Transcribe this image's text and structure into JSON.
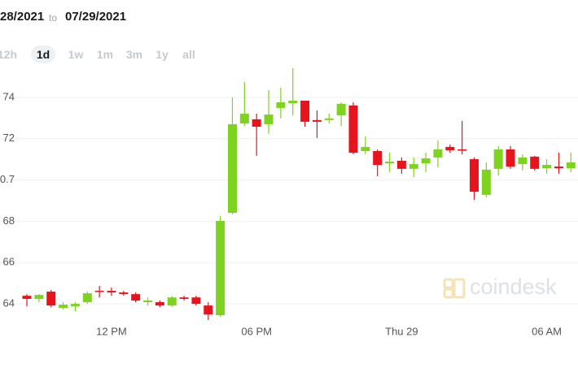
{
  "header": {
    "from": "28/2021",
    "to": "to",
    "until": "07/29/2021"
  },
  "ranges": [
    "12h",
    "1d",
    "1w",
    "1m",
    "3m",
    "1y",
    "all"
  ],
  "selected_range": "1d",
  "watermark": "coindesk",
  "chart_data": {
    "type": "candlestick",
    "up_color": "#7ed321",
    "down_color": "#e8141d",
    "grid": true,
    "categories": [
      null,
      null,
      null,
      null,
      null,
      null,
      null,
      "12 PM",
      null,
      null,
      null,
      null,
      null,
      null,
      null,
      null,
      null,
      null,
      null,
      "06 PM",
      null,
      null,
      null,
      null,
      null,
      null,
      null,
      null,
      null,
      null,
      null,
      "Thu 29",
      null,
      null,
      null,
      null,
      null,
      null,
      null,
      null,
      null,
      null,
      null,
      "06 AM",
      null,
      null
    ],
    "open": [
      0.6439,
      0.6424,
      0.6459,
      0.638,
      0.6388,
      0.6408,
      0.6463,
      0.6463,
      0.6455,
      0.6447,
      0.6408,
      0.6408,
      0.6392,
      0.6431,
      0.6431,
      0.6392,
      0.6345,
      0.6841,
      0.7274,
      0.7294,
      0.727,
      0.7349,
      0.7372,
      0.7384,
      0.729,
      0.729,
      0.7313,
      0.7361,
      0.714,
      0.714,
      0.7081,
      0.7093,
      0.7054,
      0.7081,
      0.7109,
      0.716,
      0.7148,
      0.7101,
      0.6928,
      0.7054,
      0.7148,
      0.7077,
      0.7113,
      0.7057,
      0.7065,
      0.7057
    ],
    "high": [
      0.6447,
      0.6447,
      0.6467,
      0.6408,
      0.6408,
      0.6459,
      0.6487,
      0.6479,
      0.6463,
      0.6455,
      0.6431,
      0.6416,
      0.6439,
      0.6439,
      0.6439,
      0.6408,
      0.6825,
      0.74,
      0.7475,
      0.7321,
      0.7435,
      0.7447,
      0.7542,
      0.7384,
      0.7337,
      0.7321,
      0.7376,
      0.7376,
      0.7211,
      0.7148,
      0.7132,
      0.7109,
      0.7109,
      0.7132,
      0.7191,
      0.7172,
      0.7286,
      0.7109,
      0.7085,
      0.7164,
      0.7164,
      0.7124,
      0.7117,
      0.7101,
      0.7132,
      0.7132
    ],
    "low": [
      0.6388,
      0.6408,
      0.6384,
      0.6372,
      0.6364,
      0.64,
      0.6431,
      0.6439,
      0.6439,
      0.6408,
      0.6392,
      0.6384,
      0.6384,
      0.6416,
      0.6392,
      0.6321,
      0.6337,
      0.6833,
      0.7262,
      0.7117,
      0.7223,
      0.7298,
      0.7313,
      0.7258,
      0.7203,
      0.7274,
      0.7262,
      0.7124,
      0.7124,
      0.7018,
      0.7038,
      0.703,
      0.7014,
      0.7038,
      0.7061,
      0.7132,
      0.7124,
      0.6904,
      0.6916,
      0.7022,
      0.7054,
      0.7046,
      0.7046,
      0.703,
      0.703,
      0.7038
    ],
    "close": [
      0.6424,
      0.6443,
      0.6392,
      0.6396,
      0.64,
      0.6451,
      0.6459,
      0.6455,
      0.6447,
      0.6416,
      0.6416,
      0.6392,
      0.6431,
      0.6424,
      0.64,
      0.6349,
      0.6802,
      0.727,
      0.7321,
      0.7258,
      0.7317,
      0.7376,
      0.7384,
      0.7282,
      0.7282,
      0.7298,
      0.7369,
      0.7132,
      0.716,
      0.7073,
      0.7089,
      0.7054,
      0.7077,
      0.7105,
      0.7148,
      0.7144,
      0.7144,
      0.6943,
      0.705,
      0.7148,
      0.7065,
      0.7109,
      0.7054,
      0.7073,
      0.7057,
      0.7085
    ],
    "ylim": [
      0.6298,
      0.7557
    ],
    "yticks": [
      {
        "value": 0.74,
        "label": "74"
      },
      {
        "value": 0.72,
        "label": "72"
      },
      0.7,
      {
        "value": 0.68,
        "label": "68"
      },
      {
        "value": 0.66,
        "label": "66"
      },
      {
        "value": 0.64,
        "label": "64"
      }
    ]
  }
}
